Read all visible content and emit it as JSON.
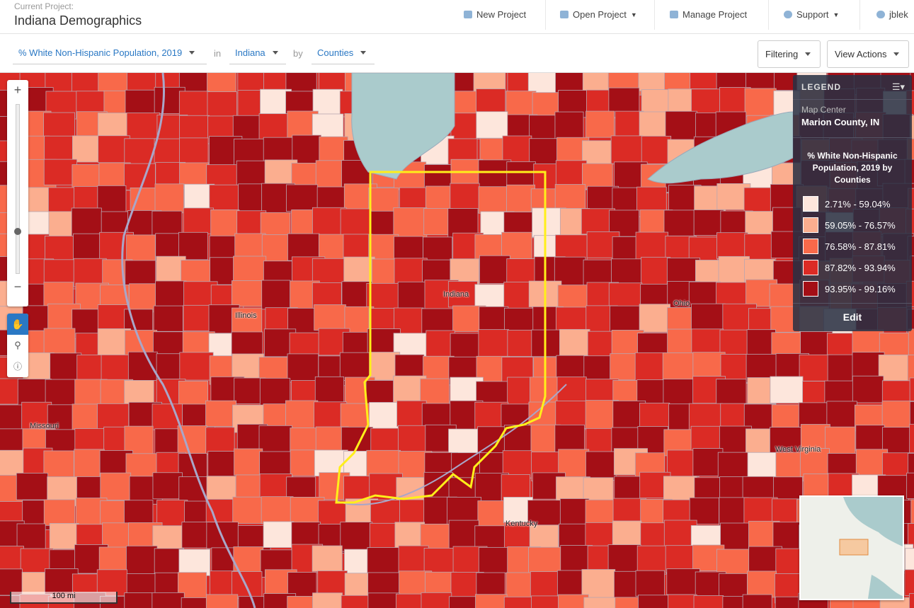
{
  "header": {
    "project_label": "Current Project:",
    "project_name": "Indiana Demographics",
    "nav": [
      "New Project",
      "Open Project",
      "Manage Project",
      "Support",
      "jblek"
    ]
  },
  "toolbar": {
    "variable": "% White Non-Hispanic Population, 2019",
    "in_label": "in",
    "region": "Indiana",
    "by_label": "by",
    "level": "Counties",
    "filtering": "Filtering",
    "view_actions": "View Actions"
  },
  "map": {
    "zoom_in": "+",
    "zoom_out": "−",
    "labels": [
      "Indiana",
      "Illinois",
      "Ohio",
      "Missouri",
      "Kentucky",
      "West Virginia"
    ],
    "scale": "100 mi"
  },
  "legend": {
    "title": "LEGEND",
    "center_label": "Map Center",
    "center_value": "Marion County, IN",
    "heading": "% White Non-Hispanic Population, 2019 by Counties",
    "classes": [
      {
        "label": "2.71% - 59.04%",
        "color": "#fde6dc"
      },
      {
        "label": "59.05% - 76.57%",
        "color": "#fbae8f"
      },
      {
        "label": "76.58% - 87.81%",
        "color": "#f8694a"
      },
      {
        "label": "87.82% - 93.94%",
        "color": "#db2b25"
      },
      {
        "label": "93.95% - 99.16%",
        "color": "#a40f16"
      }
    ],
    "edit": "Edit"
  }
}
